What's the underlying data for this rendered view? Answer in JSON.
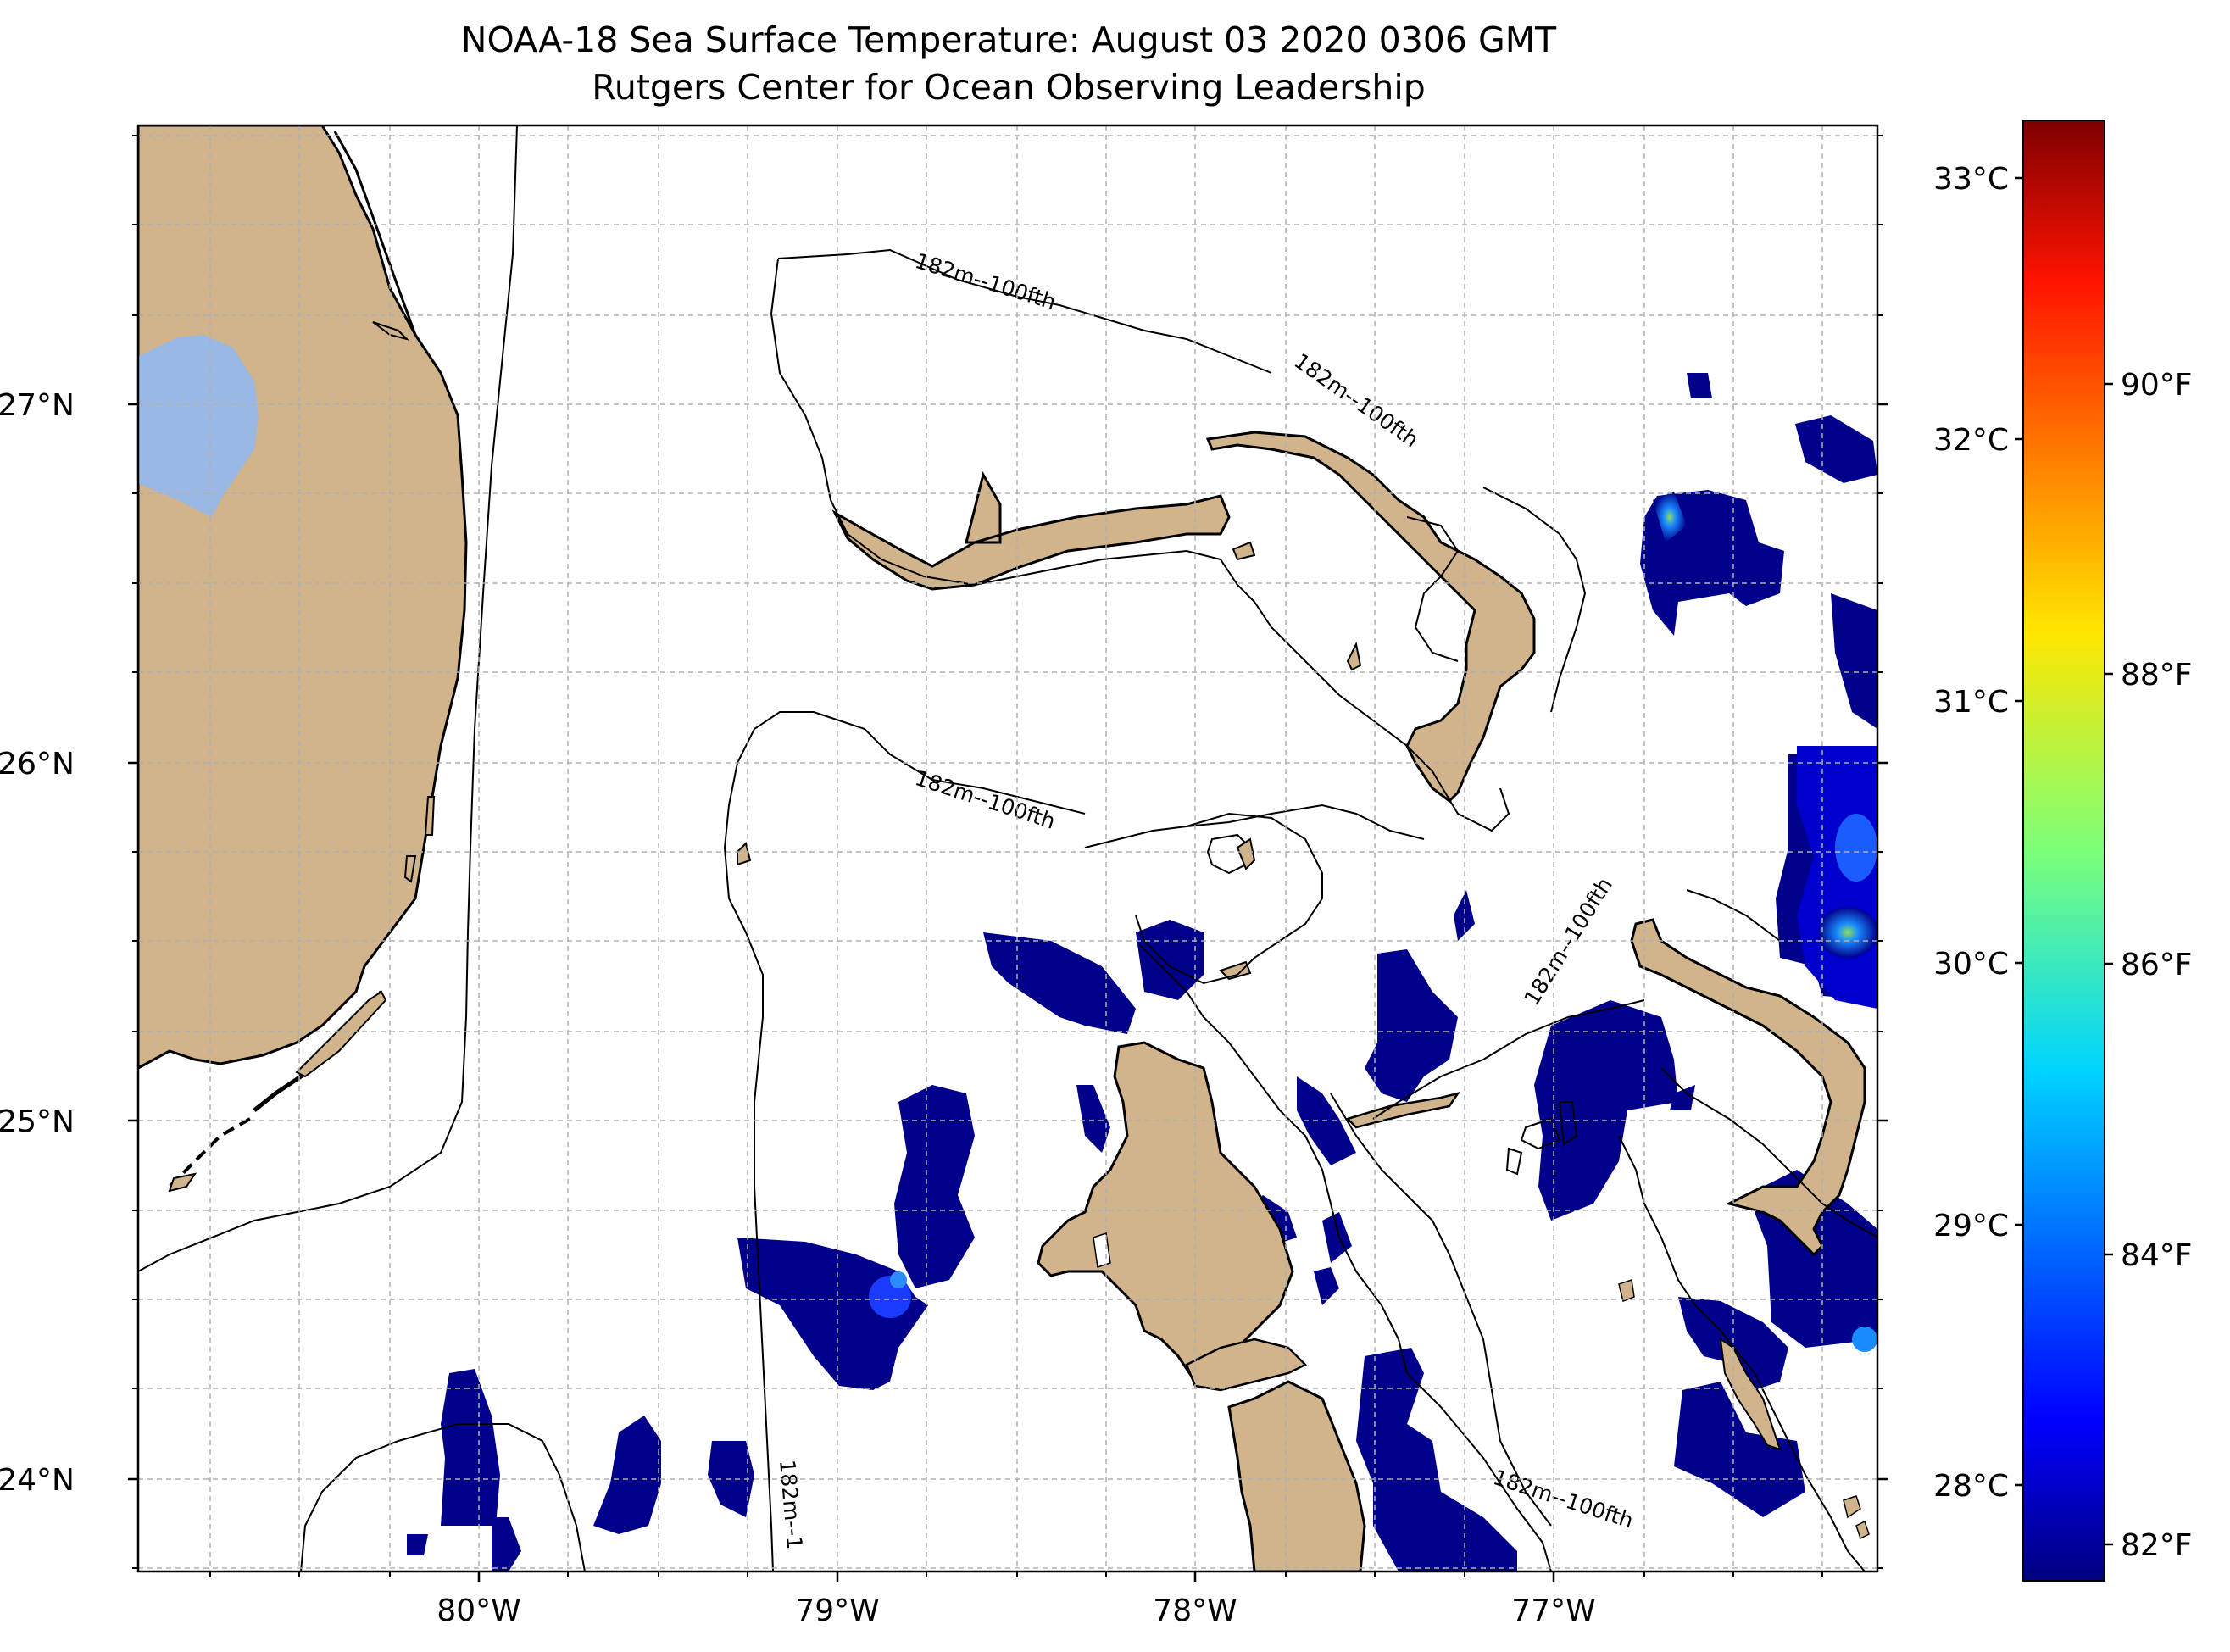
{
  "title": {
    "line1": "NOAA-18 Sea Surface Temperature: August 03 2020 0306 GMT",
    "line2": "Rutgers Center for Ocean Observing Leadership"
  },
  "map": {
    "lat_ticks": [
      "27°N",
      "26°N",
      "25°N",
      "24°N"
    ],
    "lon_ticks": [
      "80°W",
      "79°W",
      "78°W",
      "77°W"
    ],
    "contour_labels": [
      "182m--100fth",
      "182m--100fth",
      "182m--100fth",
      "182m--100fth",
      "182m--100fth",
      "182m--1"
    ],
    "colors": {
      "land": "#D2B48C",
      "lake": "#99B8E4",
      "sst_low": "#00008B",
      "sst_mid": "#1E4FFF",
      "grid": "#b0b0b0"
    }
  },
  "colorbar": {
    "celsius_ticks": [
      "33°C",
      "32°C",
      "31°C",
      "30°C",
      "29°C",
      "28°C"
    ],
    "fahrenheit_ticks": [
      "90°F",
      "88°F",
      "86°F",
      "84°F",
      "82°F"
    ],
    "colormap": "jet"
  }
}
